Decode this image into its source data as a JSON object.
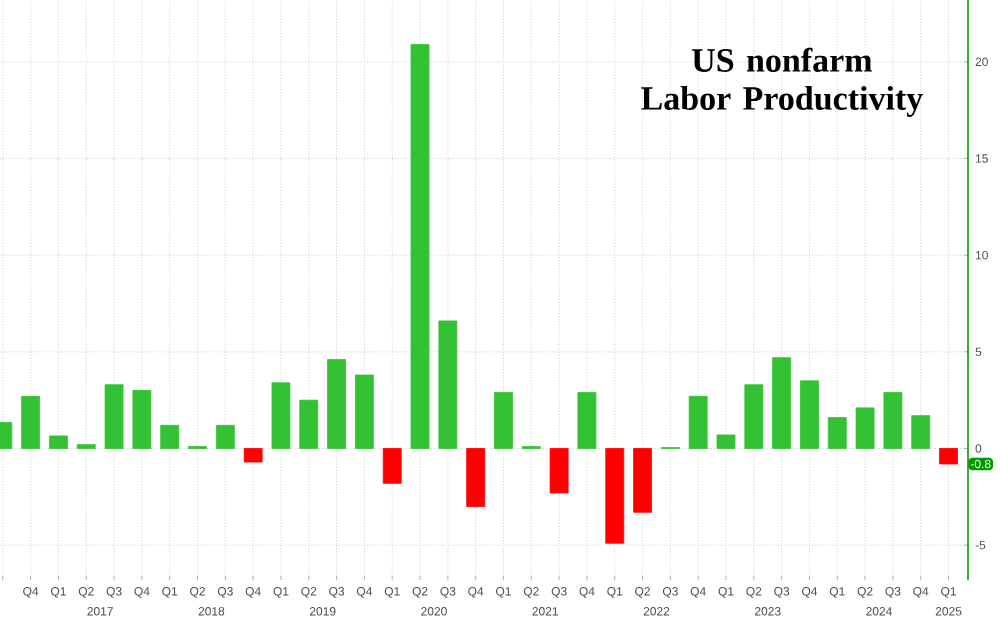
{
  "chart_data": {
    "type": "bar",
    "title": "US nonfarm Labor Productivity",
    "categories": [
      null,
      "Q4",
      "Q1",
      "Q2",
      "Q3",
      "Q4",
      "Q1",
      "Q2",
      "Q3",
      "Q4",
      "Q1",
      "Q2",
      "Q3",
      "Q4",
      "Q1",
      "Q2",
      "Q3",
      "Q4",
      "Q1",
      "Q2",
      "Q3",
      "Q4",
      "Q1",
      "Q2",
      "Q3",
      "Q4",
      "Q1",
      "Q2",
      "Q3",
      "Q4",
      "Q1",
      "Q2",
      "Q3",
      "Q4",
      "Q1"
    ],
    "values": [
      1.35,
      2.7,
      0.65,
      0.2,
      3.3,
      3.0,
      1.2,
      0.1,
      1.2,
      -0.7,
      3.4,
      2.5,
      4.6,
      3.8,
      -1.8,
      20.9,
      6.6,
      -3.0,
      2.9,
      0.1,
      -2.3,
      2.9,
      -4.9,
      -3.3,
      0.05,
      2.7,
      0.7,
      3.3,
      4.7,
      3.5,
      1.6,
      2.1,
      2.9,
      1.7,
      -0.8
    ],
    "colors": [
      "#33c233",
      "#33c233",
      "#33c233",
      "#33c233",
      "#33c233",
      "#33c233",
      "#33c233",
      "#33c233",
      "#33c233",
      "#ff0000",
      "#33c233",
      "#33c233",
      "#33c233",
      "#33c233",
      "#ff0000",
      "#33c233",
      "#33c233",
      "#ff0000",
      "#33c233",
      "#33c233",
      "#ff0000",
      "#33c233",
      "#ff0000",
      "#ff0000",
      "#33c233",
      "#33c233",
      "#33c233",
      "#33c233",
      "#33c233",
      "#33c233",
      "#33c233",
      "#33c233",
      "#33c233",
      "#33c233",
      "#ff0000"
    ],
    "ylim": [
      -6.8,
      23.2
    ],
    "yticks": [
      -5,
      0,
      5,
      10,
      15,
      20
    ],
    "grid": true,
    "annotations": [
      "2017",
      "2018",
      "2019",
      "2020",
      "2021",
      "2022",
      "2023",
      "2024",
      "2025",
      {
        "text": "-0.8",
        "y": -0.8
      }
    ]
  }
}
